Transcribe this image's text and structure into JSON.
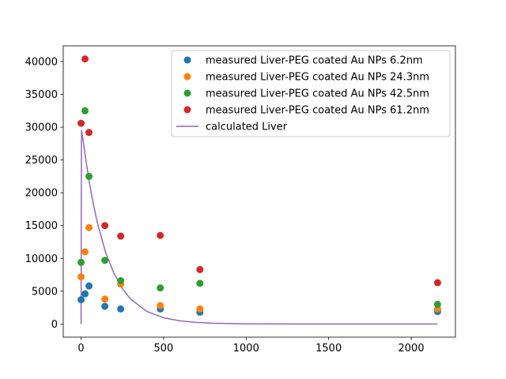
{
  "chart_data": {
    "type": "scatter",
    "title": "",
    "xlabel": "",
    "ylabel": "",
    "xlim": [
      -108,
      2268
    ],
    "ylim": [
      -2000,
      42400
    ],
    "xticks": [
      0,
      500,
      1000,
      1500,
      2000
    ],
    "yticks": [
      0,
      5000,
      10000,
      15000,
      20000,
      25000,
      30000,
      35000,
      40000
    ],
    "grid": false,
    "legend_position": "top-right",
    "series": [
      {
        "name": "measured Liver-PEG coated Au NPs 6.2nm",
        "kind": "scatter",
        "color": "#1f77b4",
        "x": [
          0,
          24,
          48,
          144,
          240,
          480,
          720,
          2160
        ],
        "y": [
          3700,
          4600,
          5800,
          2700,
          2300,
          2300,
          1800,
          1900
        ]
      },
      {
        "name": "measured Liver-PEG coated Au NPs 24.3nm",
        "kind": "scatter",
        "color": "#ff7f0e",
        "x": [
          0,
          24,
          48,
          144,
          240,
          480,
          720,
          2160
        ],
        "y": [
          7200,
          11000,
          14700,
          3800,
          6100,
          2800,
          2300,
          2300
        ]
      },
      {
        "name": "measured Liver-PEG coated Au NPs 42.5nm",
        "kind": "scatter",
        "color": "#2ca02c",
        "x": [
          0,
          24,
          48,
          144,
          240,
          480,
          720,
          2160
        ],
        "y": [
          9400,
          32500,
          22500,
          9700,
          6600,
          5500,
          6200,
          3000
        ]
      },
      {
        "name": "measured Liver-PEG coated Au NPs 61.2nm",
        "kind": "scatter",
        "color": "#d62728",
        "x": [
          0,
          24,
          48,
          144,
          240,
          480,
          720,
          2160
        ],
        "y": [
          30600,
          40400,
          29200,
          15000,
          13400,
          13500,
          8300,
          6300
        ]
      },
      {
        "name": "calculated Liver",
        "kind": "line",
        "color": "#9467bd",
        "x": [
          0,
          1,
          2,
          3,
          10,
          25,
          50,
          75,
          100,
          150,
          200,
          250,
          300,
          400,
          500,
          600,
          700,
          800,
          1000,
          1200,
          1500,
          2160
        ],
        "y": [
          0,
          14000,
          26000,
          29500,
          28400,
          25700,
          21600,
          18200,
          15300,
          10800,
          7700,
          5400,
          3800,
          1900,
          950,
          480,
          240,
          120,
          30,
          10,
          0,
          0
        ]
      }
    ]
  }
}
